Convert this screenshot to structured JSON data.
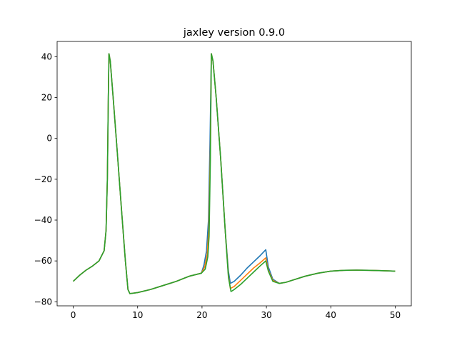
{
  "chart_data": {
    "type": "line",
    "title": "jaxley version 0.9.0",
    "xlabel": "",
    "ylabel": "",
    "xlim": [
      -2.5,
      52.5
    ],
    "ylim": [
      -82,
      47.5
    ],
    "xticks": [
      0,
      10,
      20,
      30,
      40,
      50
    ],
    "yticks": [
      -80,
      -60,
      -40,
      -20,
      0,
      20,
      40
    ],
    "grid": false,
    "legend": "none",
    "series": [
      {
        "color": "#1f77b4",
        "points": [
          [
            0,
            -70
          ],
          [
            1,
            -67
          ],
          [
            2,
            -64.5
          ],
          [
            3,
            -62.5
          ],
          [
            4,
            -60
          ],
          [
            4.8,
            -55
          ],
          [
            5.1,
            -45
          ],
          [
            5.3,
            -20
          ],
          [
            5.45,
            20
          ],
          [
            5.55,
            41.5
          ],
          [
            5.75,
            38
          ],
          [
            6.2,
            20
          ],
          [
            6.8,
            -5
          ],
          [
            7.5,
            -35
          ],
          [
            8.1,
            -60
          ],
          [
            8.5,
            -74
          ],
          [
            8.8,
            -76
          ],
          [
            10,
            -75.5
          ],
          [
            12,
            -74
          ],
          [
            14,
            -72
          ],
          [
            16,
            -70
          ],
          [
            18,
            -67.5
          ],
          [
            19.9,
            -66
          ],
          [
            20.3,
            -62
          ],
          [
            20.7,
            -55
          ],
          [
            21.0,
            -40
          ],
          [
            21.25,
            0
          ],
          [
            21.45,
            41.5
          ],
          [
            21.7,
            38
          ],
          [
            22.2,
            20
          ],
          [
            22.9,
            -10
          ],
          [
            23.6,
            -45
          ],
          [
            24.1,
            -65
          ],
          [
            24.4,
            -71
          ],
          [
            25,
            -70
          ],
          [
            26,
            -67
          ],
          [
            27,
            -63.5
          ],
          [
            28,
            -60.5
          ],
          [
            29,
            -57.5
          ],
          [
            29.9,
            -54.5
          ],
          [
            30.3,
            -63
          ],
          [
            31,
            -69
          ],
          [
            32,
            -71
          ],
          [
            33,
            -70.5
          ],
          [
            34,
            -69.5
          ],
          [
            36,
            -67.5
          ],
          [
            38,
            -66
          ],
          [
            40,
            -65
          ],
          [
            42,
            -64.6
          ],
          [
            44,
            -64.5
          ],
          [
            46,
            -64.6
          ],
          [
            48,
            -64.8
          ],
          [
            50,
            -65
          ]
        ]
      },
      {
        "color": "#ff7f0e",
        "points": [
          [
            0,
            -70
          ],
          [
            1,
            -67
          ],
          [
            2,
            -64.5
          ],
          [
            3,
            -62.5
          ],
          [
            4,
            -60
          ],
          [
            4.8,
            -55
          ],
          [
            5.1,
            -45
          ],
          [
            5.3,
            -20
          ],
          [
            5.45,
            20
          ],
          [
            5.55,
            41.5
          ],
          [
            5.75,
            38
          ],
          [
            6.2,
            20
          ],
          [
            6.8,
            -5
          ],
          [
            7.5,
            -35
          ],
          [
            8.1,
            -60
          ],
          [
            8.5,
            -74
          ],
          [
            8.8,
            -76
          ],
          [
            10,
            -75.5
          ],
          [
            12,
            -74
          ],
          [
            14,
            -72
          ],
          [
            16,
            -70
          ],
          [
            18,
            -67.5
          ],
          [
            19.9,
            -66
          ],
          [
            20.4,
            -63
          ],
          [
            20.8,
            -57
          ],
          [
            21.05,
            -45
          ],
          [
            21.3,
            -5
          ],
          [
            21.45,
            41.5
          ],
          [
            21.7,
            38
          ],
          [
            22.2,
            20
          ],
          [
            22.9,
            -10
          ],
          [
            23.6,
            -45
          ],
          [
            24.1,
            -67
          ],
          [
            24.4,
            -73.5
          ],
          [
            25,
            -72.5
          ],
          [
            26,
            -69.5
          ],
          [
            27,
            -66.5
          ],
          [
            28,
            -63.5
          ],
          [
            29,
            -61
          ],
          [
            29.9,
            -58.5
          ],
          [
            30.3,
            -64.5
          ],
          [
            31,
            -69.5
          ],
          [
            32,
            -71
          ],
          [
            33,
            -70.5
          ],
          [
            34,
            -69.5
          ],
          [
            36,
            -67.5
          ],
          [
            38,
            -66
          ],
          [
            40,
            -65
          ],
          [
            42,
            -64.6
          ],
          [
            44,
            -64.5
          ],
          [
            46,
            -64.6
          ],
          [
            48,
            -64.8
          ],
          [
            50,
            -65
          ]
        ]
      },
      {
        "color": "#2ca02c",
        "points": [
          [
            0,
            -70
          ],
          [
            1,
            -67
          ],
          [
            2,
            -64.5
          ],
          [
            3,
            -62.5
          ],
          [
            4,
            -60
          ],
          [
            4.8,
            -55
          ],
          [
            5.1,
            -45
          ],
          [
            5.3,
            -20
          ],
          [
            5.45,
            20
          ],
          [
            5.55,
            41.5
          ],
          [
            5.75,
            38
          ],
          [
            6.2,
            20
          ],
          [
            6.8,
            -5
          ],
          [
            7.5,
            -35
          ],
          [
            8.1,
            -60
          ],
          [
            8.5,
            -74
          ],
          [
            8.8,
            -76
          ],
          [
            10,
            -75.5
          ],
          [
            12,
            -74
          ],
          [
            14,
            -72
          ],
          [
            16,
            -70
          ],
          [
            18,
            -67.5
          ],
          [
            19.9,
            -66
          ],
          [
            20.5,
            -64
          ],
          [
            20.9,
            -58
          ],
          [
            21.1,
            -48
          ],
          [
            21.3,
            -10
          ],
          [
            21.45,
            41.5
          ],
          [
            21.7,
            38
          ],
          [
            22.2,
            20
          ],
          [
            22.9,
            -10
          ],
          [
            23.6,
            -45
          ],
          [
            24.1,
            -68
          ],
          [
            24.5,
            -75
          ],
          [
            25,
            -74
          ],
          [
            26,
            -71.5
          ],
          [
            27,
            -68.5
          ],
          [
            28,
            -65.5
          ],
          [
            29,
            -62.5
          ],
          [
            29.9,
            -60
          ],
          [
            30.3,
            -65
          ],
          [
            31,
            -70
          ],
          [
            32,
            -71
          ],
          [
            33,
            -70.5
          ],
          [
            34,
            -69.5
          ],
          [
            36,
            -67.5
          ],
          [
            38,
            -66
          ],
          [
            40,
            -65
          ],
          [
            42,
            -64.6
          ],
          [
            44,
            -64.5
          ],
          [
            46,
            -64.6
          ],
          [
            48,
            -64.8
          ],
          [
            50,
            -65
          ]
        ]
      }
    ]
  }
}
